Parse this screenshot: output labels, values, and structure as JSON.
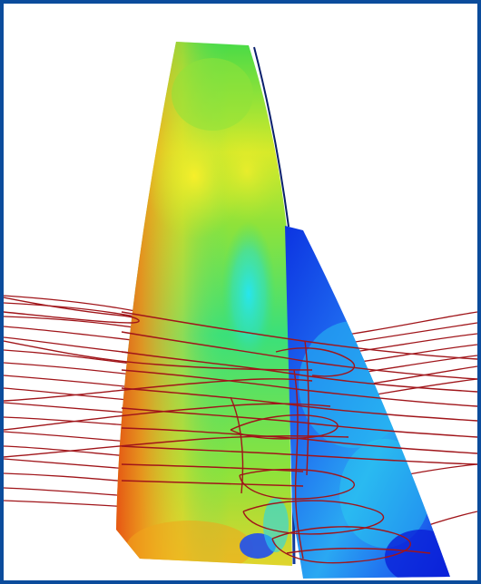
{
  "scene": {
    "kind": "cfd-sail-visualization",
    "background_color": "#ffffff",
    "frame_color": "#0b4c9c",
    "streamline_color": "#a0151a",
    "colormap": [
      "#0a1fd8",
      "#1f7cf0",
      "#25d6f0",
      "#3ae07a",
      "#8fe23a",
      "#e9ef2a",
      "#f5a51c",
      "#e84a12"
    ]
  }
}
